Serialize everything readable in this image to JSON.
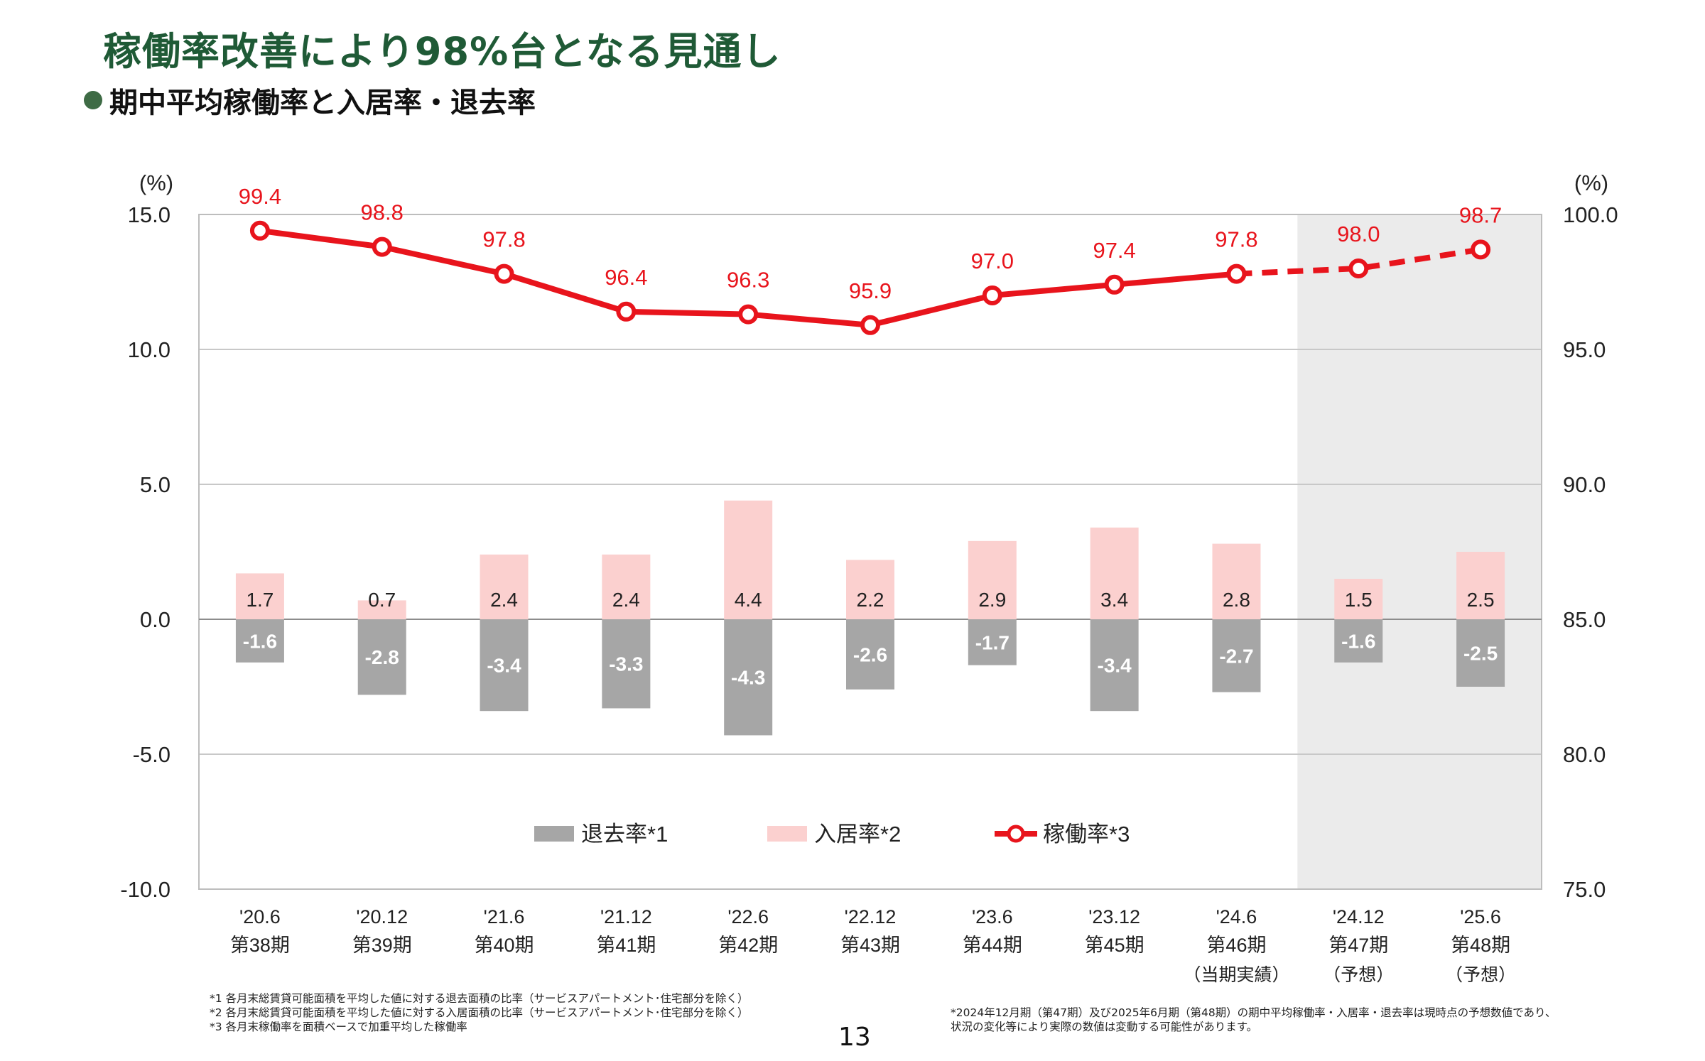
{
  "header": {
    "title": "稼働率改善により98%台となる見通し",
    "subtitle": "期中平均稼働率と入居率・退去率"
  },
  "chart_data": {
    "type": "bar",
    "categories": [
      [
        "'20.6",
        "第38期",
        ""
      ],
      [
        "'20.12",
        "第39期",
        ""
      ],
      [
        "'21.6",
        "第40期",
        ""
      ],
      [
        "'21.12",
        "第41期",
        ""
      ],
      [
        "'22.6",
        "第42期",
        ""
      ],
      [
        "'22.12",
        "第43期",
        ""
      ],
      [
        "'23.6",
        "第44期",
        ""
      ],
      [
        "'23.12",
        "第45期",
        ""
      ],
      [
        "'24.6",
        "第46期",
        "（当期実績）"
      ],
      [
        "'24.12",
        "第47期",
        "（予想）"
      ],
      [
        "'25.6",
        "第48期",
        "（予想）"
      ]
    ],
    "series": [
      {
        "name": "退去率*1",
        "type": "bar",
        "axis": "left",
        "color": "#a6a6a6",
        "values": [
          -1.6,
          -2.8,
          -3.4,
          -3.3,
          -4.3,
          -2.6,
          -1.7,
          -3.4,
          -2.7,
          -1.6,
          -2.5
        ]
      },
      {
        "name": "入居率*2",
        "type": "bar",
        "axis": "left",
        "color": "#fbd0cf",
        "values": [
          1.7,
          0.7,
          2.4,
          2.4,
          4.4,
          2.2,
          2.9,
          3.4,
          2.8,
          1.5,
          2.5
        ]
      },
      {
        "name": "稼働率*3",
        "type": "line",
        "axis": "right",
        "color": "#e8141c",
        "values": [
          99.4,
          98.8,
          97.8,
          96.4,
          96.3,
          95.9,
          97.0,
          97.4,
          97.8,
          98.0,
          98.7
        ]
      }
    ],
    "forecast_start_index": 9,
    "left_axis": {
      "unit": "(%)",
      "ylim": [
        -10,
        15
      ],
      "ticks": [
        "15.0",
        "10.0",
        "5.0",
        "0.0",
        "-5.0",
        "-10.0"
      ]
    },
    "right_axis": {
      "unit": "(%)",
      "ylim": [
        75,
        100
      ],
      "ticks": [
        "100.0",
        "95.0",
        "90.0",
        "85.0",
        "80.0",
        "75.0"
      ]
    },
    "grid": true,
    "legend_position": "bottom-center"
  },
  "footnotes": {
    "left": [
      "*1  各月末総賃貸可能面積を平均した値に対する退去面積の比率（サービスアパートメント･住宅部分を除く）",
      "*2  各月末総賃貸可能面積を平均した値に対する入居面積の比率（サービスアパートメント･住宅部分を除く）",
      "*3  各月末稼働率を面積ベースで加重平均した稼働率"
    ],
    "right": [
      "*2024年12月期（第47期）及び2025年6月期（第48期）の期中平均稼働率・入居率・退去率は現時点の予想数値であり、",
      "  状況の変化等により実際の数値は変動する可能性があります。"
    ]
  },
  "page_number": "13"
}
